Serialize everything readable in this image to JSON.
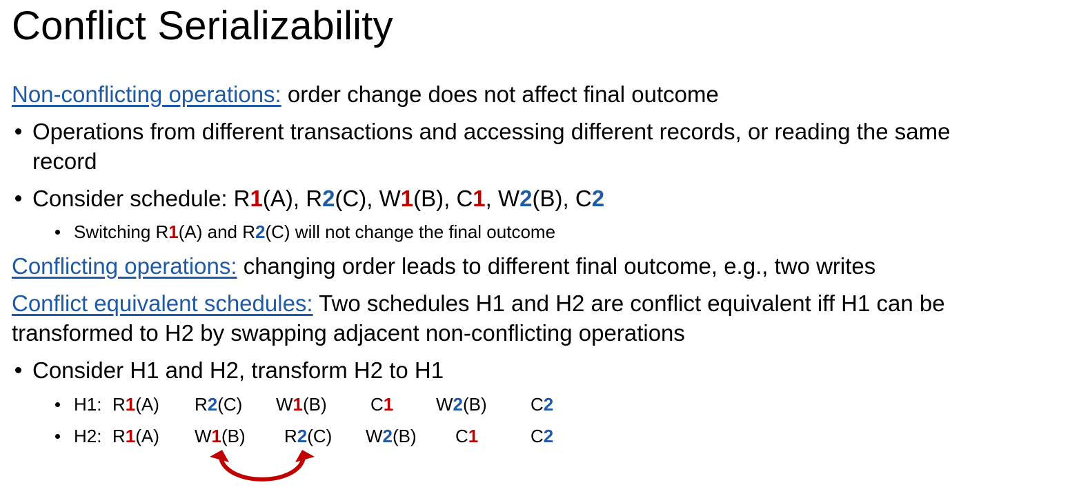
{
  "title": "Conflict Serializability",
  "colors": {
    "term": "#1f5aa6",
    "txn1": "#c00000",
    "txn2": "#1f5aa6",
    "arrow": "#c00000"
  },
  "nonconf": {
    "term": "Non-conflicting operations:",
    "desc": " order change does not affect final outcome"
  },
  "bullet1": {
    "line1": "Operations from different transactions and accessing different records, or reading the same",
    "line2": "record"
  },
  "bullet2": {
    "prefix": "Consider schedule: ",
    "ops": [
      {
        "a": "R",
        "n": "1",
        "b": "(A)"
      },
      {
        "a": "R",
        "n": "2",
        "b": "(C)"
      },
      {
        "a": "W",
        "n": "1",
        "b": "(B)"
      },
      {
        "a": "C",
        "n": "1",
        "b": ""
      },
      {
        "a": "W",
        "n": "2",
        "b": "(B)"
      },
      {
        "a": "C",
        "n": "2",
        "b": ""
      }
    ],
    "sep": ", "
  },
  "sub1": {
    "p1": "Switching R",
    "n1": "1",
    "p2": "(A) and R",
    "n2": "2",
    "p3": "(C) will not change the final outcome"
  },
  "conf": {
    "term": "Conflicting operations:",
    "desc": " changing order leads to different final outcome, e.g., two writes"
  },
  "equiv": {
    "term": "Conflict equivalent schedules:",
    "desc1": " Two schedules H1 and H2 are conflict equivalent iff H1 can be",
    "desc2": "transformed to H2 by swapping adjacent non-conflicting operations"
  },
  "bullet3": "Consider H1 and H2, transform H2 to H1",
  "h1": {
    "label": "H1: ",
    "ops": [
      {
        "a": "R",
        "n": "1",
        "b": "(A)"
      },
      {
        "a": "R",
        "n": "2",
        "b": "(C)"
      },
      {
        "a": "W",
        "n": "1",
        "b": "(B)"
      },
      {
        "a": "C",
        "n": "1",
        "b": ""
      },
      {
        "a": "W",
        "n": "2",
        "b": "(B)"
      },
      {
        "a": "C",
        "n": "2",
        "b": ""
      }
    ]
  },
  "h2": {
    "label": "H2: ",
    "ops": [
      {
        "a": "R",
        "n": "1",
        "b": "(A)"
      },
      {
        "a": "W",
        "n": "1",
        "b": "(B)"
      },
      {
        "a": "R",
        "n": "2",
        "b": "(C)"
      },
      {
        "a": "W",
        "n": "2",
        "b": "(B)"
      },
      {
        "a": "C",
        "n": "1",
        "b": ""
      },
      {
        "a": "C",
        "n": "2",
        "b": ""
      }
    ]
  }
}
